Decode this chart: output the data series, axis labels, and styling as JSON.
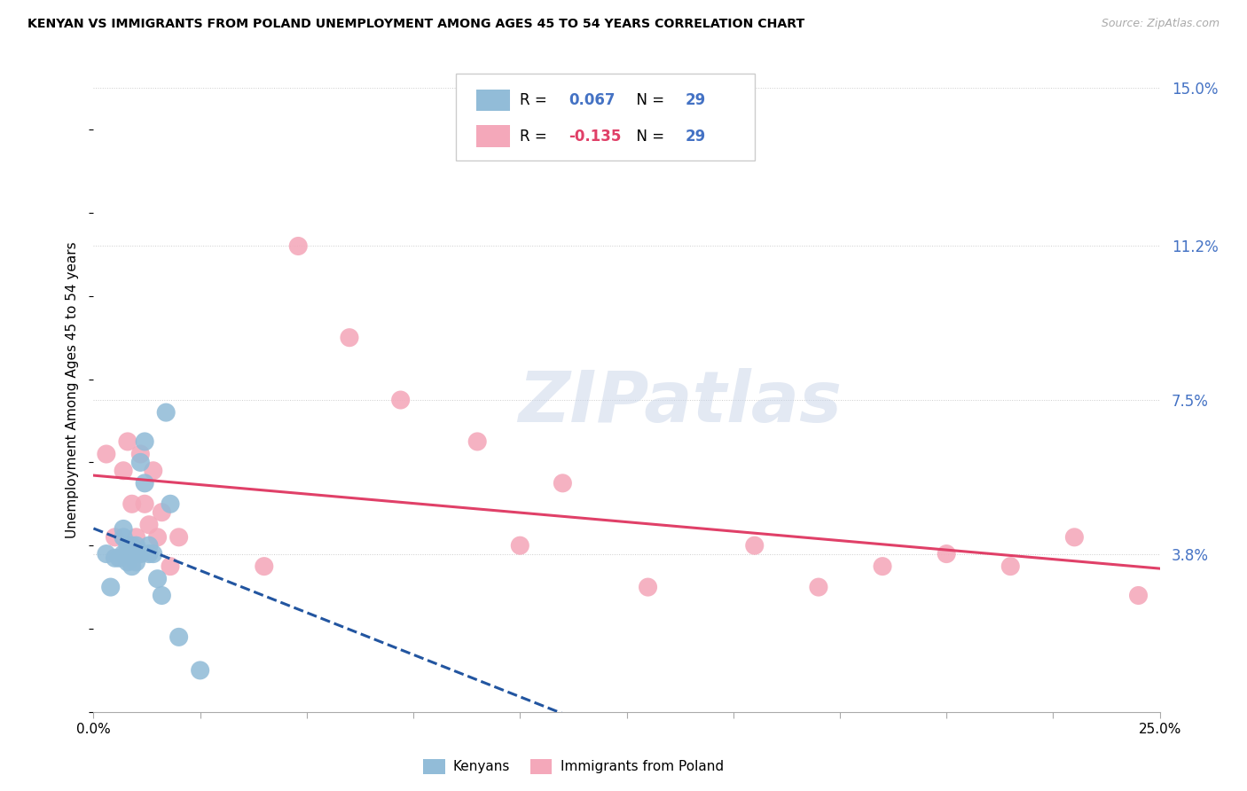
{
  "title": "KENYAN VS IMMIGRANTS FROM POLAND UNEMPLOYMENT AMONG AGES 45 TO 54 YEARS CORRELATION CHART",
  "source": "Source: ZipAtlas.com",
  "ylabel": "Unemployment Among Ages 45 to 54 years",
  "xlim": [
    0.0,
    0.25
  ],
  "ylim": [
    0.0,
    0.155
  ],
  "ytick_positions": [
    0.038,
    0.075,
    0.112,
    0.15
  ],
  "ytick_labels": [
    "3.8%",
    "7.5%",
    "11.2%",
    "15.0%"
  ],
  "xtick_positions": [
    0.0,
    0.025,
    0.05,
    0.075,
    0.1,
    0.125,
    0.15,
    0.175,
    0.2,
    0.225,
    0.25
  ],
  "xtick_labels": [
    "0.0%",
    "",
    "",
    "",
    "",
    "",
    "",
    "",
    "",
    "",
    "25.0%"
  ],
  "kenyan_color": "#92bcd8",
  "poland_color": "#f4a8ba",
  "kenyan_line_color": "#2255a0",
  "poland_line_color": "#e04068",
  "right_axis_label_color": "#4472c4",
  "watermark": "ZIPatlas",
  "kenyan_x": [
    0.003,
    0.004,
    0.005,
    0.006,
    0.007,
    0.007,
    0.007,
    0.008,
    0.008,
    0.008,
    0.009,
    0.009,
    0.009,
    0.01,
    0.01,
    0.01,
    0.011,
    0.011,
    0.012,
    0.012,
    0.013,
    0.013,
    0.014,
    0.015,
    0.016,
    0.017,
    0.018,
    0.02,
    0.025
  ],
  "kenyan_y": [
    0.038,
    0.03,
    0.037,
    0.037,
    0.038,
    0.042,
    0.044,
    0.038,
    0.04,
    0.036,
    0.04,
    0.038,
    0.035,
    0.04,
    0.038,
    0.036,
    0.06,
    0.038,
    0.065,
    0.055,
    0.04,
    0.038,
    0.038,
    0.032,
    0.028,
    0.072,
    0.05,
    0.018,
    0.01
  ],
  "poland_x": [
    0.003,
    0.005,
    0.007,
    0.008,
    0.009,
    0.01,
    0.011,
    0.012,
    0.013,
    0.014,
    0.015,
    0.016,
    0.018,
    0.02,
    0.04,
    0.048,
    0.06,
    0.072,
    0.09,
    0.1,
    0.11,
    0.13,
    0.155,
    0.17,
    0.185,
    0.2,
    0.215,
    0.23,
    0.245
  ],
  "poland_y": [
    0.062,
    0.042,
    0.058,
    0.065,
    0.05,
    0.042,
    0.062,
    0.05,
    0.045,
    0.058,
    0.042,
    0.048,
    0.035,
    0.042,
    0.035,
    0.112,
    0.09,
    0.075,
    0.065,
    0.04,
    0.055,
    0.03,
    0.04,
    0.03,
    0.035,
    0.038,
    0.035,
    0.042,
    0.028
  ]
}
